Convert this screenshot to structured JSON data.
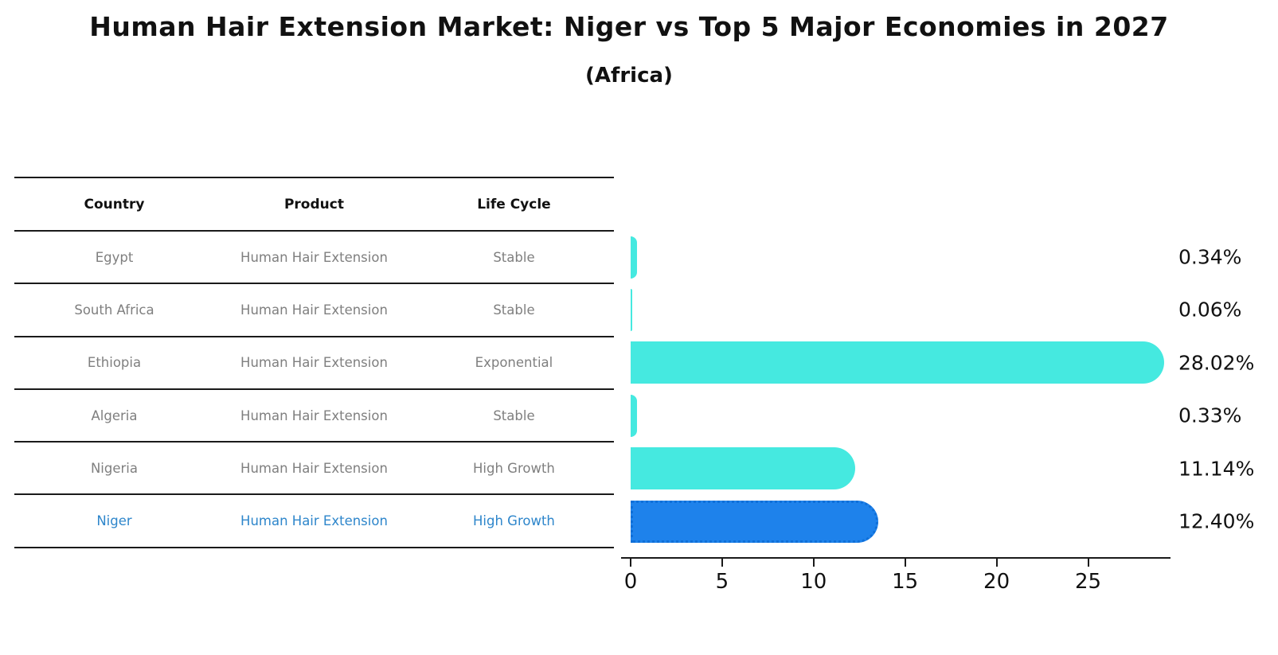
{
  "title": "Human Hair Extension Market: Niger vs Top 5 Major Economies in 2027",
  "subtitle": "(Africa)",
  "table": {
    "headers": [
      "Country",
      "Product",
      "Life Cycle"
    ],
    "rows": [
      {
        "country": "Egypt",
        "product": "Human Hair Extension",
        "life_cycle": "Stable",
        "highlighted": false
      },
      {
        "country": "South Africa",
        "product": "Human Hair Extension",
        "life_cycle": "Stable",
        "highlighted": false
      },
      {
        "country": "Ethiopia",
        "product": "Human Hair Extension",
        "life_cycle": "Exponential",
        "highlighted": false
      },
      {
        "country": "Algeria",
        "product": "Human Hair Extension",
        "life_cycle": "Stable",
        "highlighted": false
      },
      {
        "country": "Nigeria",
        "product": "Human Hair Extension",
        "life_cycle": "High Growth",
        "highlighted": false
      },
      {
        "country": "Niger",
        "product": "Human Hair Extension",
        "life_cycle": "High Growth",
        "highlighted": true
      }
    ]
  },
  "chart_data": {
    "type": "bar",
    "orientation": "horizontal",
    "title": "Human Hair Extension Market: Niger vs Top 5 Major Economies in 2027 (Africa)",
    "categories": [
      "Egypt",
      "South Africa",
      "Ethiopia",
      "Algeria",
      "Nigeria",
      "Niger"
    ],
    "values": [
      0.34,
      0.06,
      28.02,
      0.33,
      11.14,
      12.4
    ],
    "value_labels": [
      "0.34%",
      "0.06%",
      "28.02%",
      "0.33%",
      "11.14%",
      "12.40%"
    ],
    "xticks": [
      "0",
      "5",
      "10",
      "15",
      "20",
      "25"
    ],
    "xtick_values": [
      0,
      5,
      10,
      15,
      20,
      25
    ],
    "xlim": [
      0,
      29.5
    ],
    "grid": false,
    "legend": false,
    "bar_color": "#45e9e0",
    "highlight_index": 5,
    "highlight_color": "#1e82eb",
    "highlight_border_color": "#0f6fd8",
    "highlight_text_color": "#2e86cb"
  }
}
